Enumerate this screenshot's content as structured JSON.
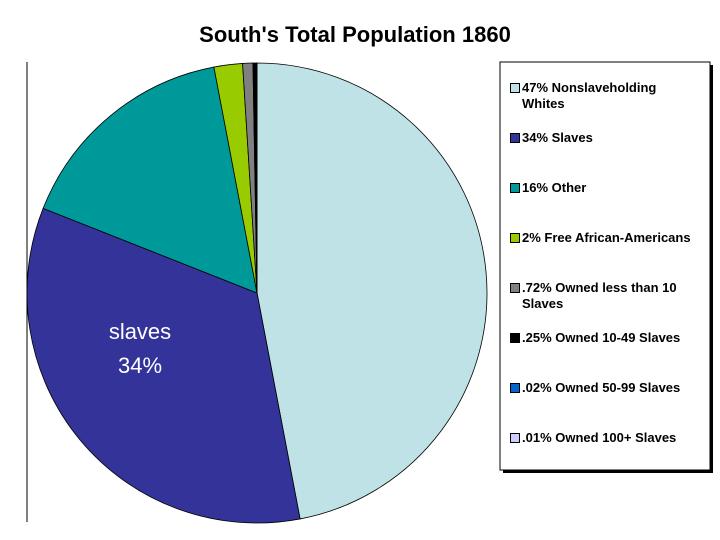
{
  "chart_data": {
    "type": "pie",
    "title": "South's Total Population 1860",
    "categories": [
      "47% Nonslaveholding Whites",
      "34% Slaves",
      "16% Other",
      "2% Free African-Americans",
      ".72% Owned less than 10 Slaves",
      ".25% Owned 10-49 Slaves",
      ".02% Owned 50-99 Slaves",
      ".01% Owned 100+ Slaves"
    ],
    "values": [
      47,
      34,
      16,
      2,
      0.72,
      0.25,
      0.02,
      0.01
    ],
    "colors": [
      "#bfe2e6",
      "#333399",
      "#009999",
      "#99cc00",
      "#808080",
      "#000000",
      "#0066cc",
      "#ccccff"
    ],
    "annotation": [
      "slaves",
      "34%"
    ],
    "legend": "right"
  }
}
